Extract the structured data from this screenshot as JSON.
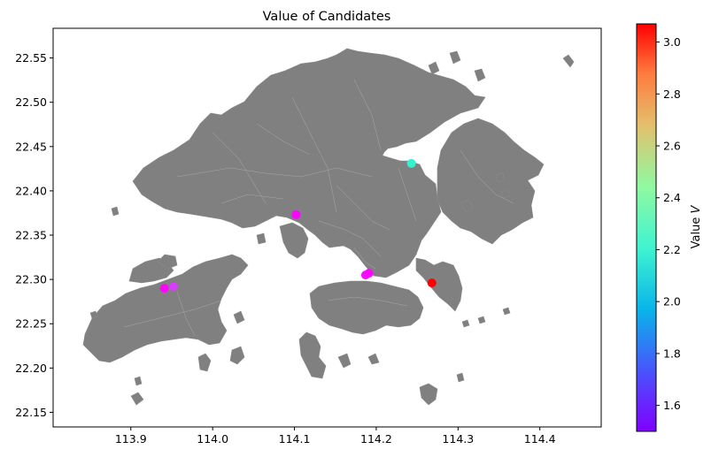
{
  "chart_data": {
    "type": "scatter",
    "title": "Value of Candidates",
    "xlabel": "",
    "ylabel": "",
    "xlim": [
      113.805,
      114.475
    ],
    "ylim": [
      22.1335,
      22.5835
    ],
    "x_ticks": [
      113.9,
      114.0,
      114.1,
      114.2,
      114.3,
      114.4
    ],
    "x_tick_labels": [
      "113.9",
      "114.0",
      "114.1",
      "114.2",
      "114.3",
      "114.4"
    ],
    "y_ticks": [
      22.15,
      22.2,
      22.25,
      22.3,
      22.35,
      22.4,
      22.45,
      22.5,
      22.55
    ],
    "y_tick_labels": [
      "22.15",
      "22.20",
      "22.25",
      "22.30",
      "22.35",
      "22.40",
      "22.45",
      "22.50",
      "22.55"
    ],
    "grid": false,
    "background_map": {
      "fill_color": "#808080",
      "boundary_color": "#a8a8a8"
    },
    "colorbar": {
      "label": "Value V",
      "label_main": "Value ",
      "label_italic": "V",
      "colormap": "rainbow",
      "range": [
        1.5,
        3.07
      ],
      "ticks": [
        1.6,
        1.8,
        2.0,
        2.2,
        2.4,
        2.6,
        2.8,
        3.0
      ],
      "tick_labels": [
        "1.6",
        "1.8",
        "2.0",
        "2.2",
        "2.4",
        "2.6",
        "2.8",
        "3.0"
      ]
    },
    "points": [
      {
        "x": 113.941,
        "y": 22.29,
        "value": 1.51
      },
      {
        "x": 113.952,
        "y": 22.292,
        "value": 1.62
      },
      {
        "x": 114.102,
        "y": 22.373,
        "value": 1.51
      },
      {
        "x": 114.187,
        "y": 22.305,
        "value": 1.53
      },
      {
        "x": 114.191,
        "y": 22.307,
        "value": 1.51
      },
      {
        "x": 114.243,
        "y": 22.431,
        "value": 2.12
      },
      {
        "x": 114.268,
        "y": 22.296,
        "value": 3.07
      }
    ]
  }
}
